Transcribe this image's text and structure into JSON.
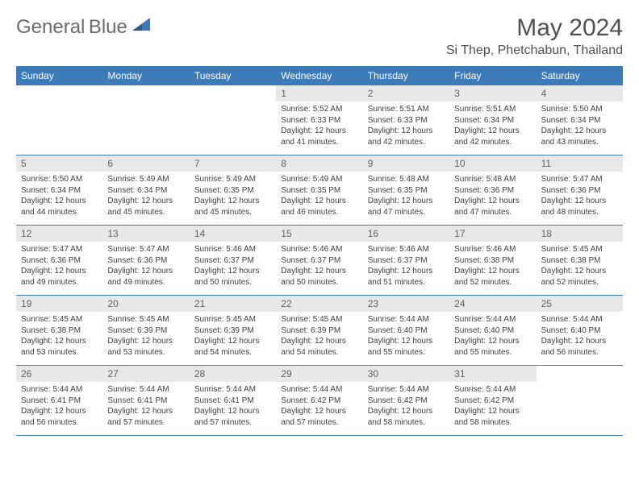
{
  "logo": {
    "text1": "General",
    "text2": "Blue",
    "icon_color": "#3d7ab8"
  },
  "title": "May 2024",
  "location": "Si Thep, Phetchabun, Thailand",
  "header_bg": "#3d7ab8",
  "header_text_color": "#ffffff",
  "daynum_bg": "#e8e8e8",
  "border_color": "#3d7ab8",
  "weekdays": [
    "Sunday",
    "Monday",
    "Tuesday",
    "Wednesday",
    "Thursday",
    "Friday",
    "Saturday"
  ],
  "weeks": [
    [
      null,
      null,
      null,
      {
        "n": "1",
        "sr": "5:52 AM",
        "ss": "6:33 PM",
        "dl": "12 hours and 41 minutes."
      },
      {
        "n": "2",
        "sr": "5:51 AM",
        "ss": "6:33 PM",
        "dl": "12 hours and 42 minutes."
      },
      {
        "n": "3",
        "sr": "5:51 AM",
        "ss": "6:34 PM",
        "dl": "12 hours and 42 minutes."
      },
      {
        "n": "4",
        "sr": "5:50 AM",
        "ss": "6:34 PM",
        "dl": "12 hours and 43 minutes."
      }
    ],
    [
      {
        "n": "5",
        "sr": "5:50 AM",
        "ss": "6:34 PM",
        "dl": "12 hours and 44 minutes."
      },
      {
        "n": "6",
        "sr": "5:49 AM",
        "ss": "6:34 PM",
        "dl": "12 hours and 45 minutes."
      },
      {
        "n": "7",
        "sr": "5:49 AM",
        "ss": "6:35 PM",
        "dl": "12 hours and 45 minutes."
      },
      {
        "n": "8",
        "sr": "5:49 AM",
        "ss": "6:35 PM",
        "dl": "12 hours and 46 minutes."
      },
      {
        "n": "9",
        "sr": "5:48 AM",
        "ss": "6:35 PM",
        "dl": "12 hours and 47 minutes."
      },
      {
        "n": "10",
        "sr": "5:48 AM",
        "ss": "6:36 PM",
        "dl": "12 hours and 47 minutes."
      },
      {
        "n": "11",
        "sr": "5:47 AM",
        "ss": "6:36 PM",
        "dl": "12 hours and 48 minutes."
      }
    ],
    [
      {
        "n": "12",
        "sr": "5:47 AM",
        "ss": "6:36 PM",
        "dl": "12 hours and 49 minutes."
      },
      {
        "n": "13",
        "sr": "5:47 AM",
        "ss": "6:36 PM",
        "dl": "12 hours and 49 minutes."
      },
      {
        "n": "14",
        "sr": "5:46 AM",
        "ss": "6:37 PM",
        "dl": "12 hours and 50 minutes."
      },
      {
        "n": "15",
        "sr": "5:46 AM",
        "ss": "6:37 PM",
        "dl": "12 hours and 50 minutes."
      },
      {
        "n": "16",
        "sr": "5:46 AM",
        "ss": "6:37 PM",
        "dl": "12 hours and 51 minutes."
      },
      {
        "n": "17",
        "sr": "5:46 AM",
        "ss": "6:38 PM",
        "dl": "12 hours and 52 minutes."
      },
      {
        "n": "18",
        "sr": "5:45 AM",
        "ss": "6:38 PM",
        "dl": "12 hours and 52 minutes."
      }
    ],
    [
      {
        "n": "19",
        "sr": "5:45 AM",
        "ss": "6:38 PM",
        "dl": "12 hours and 53 minutes."
      },
      {
        "n": "20",
        "sr": "5:45 AM",
        "ss": "6:39 PM",
        "dl": "12 hours and 53 minutes."
      },
      {
        "n": "21",
        "sr": "5:45 AM",
        "ss": "6:39 PM",
        "dl": "12 hours and 54 minutes."
      },
      {
        "n": "22",
        "sr": "5:45 AM",
        "ss": "6:39 PM",
        "dl": "12 hours and 54 minutes."
      },
      {
        "n": "23",
        "sr": "5:44 AM",
        "ss": "6:40 PM",
        "dl": "12 hours and 55 minutes."
      },
      {
        "n": "24",
        "sr": "5:44 AM",
        "ss": "6:40 PM",
        "dl": "12 hours and 55 minutes."
      },
      {
        "n": "25",
        "sr": "5:44 AM",
        "ss": "6:40 PM",
        "dl": "12 hours and 56 minutes."
      }
    ],
    [
      {
        "n": "26",
        "sr": "5:44 AM",
        "ss": "6:41 PM",
        "dl": "12 hours and 56 minutes."
      },
      {
        "n": "27",
        "sr": "5:44 AM",
        "ss": "6:41 PM",
        "dl": "12 hours and 57 minutes."
      },
      {
        "n": "28",
        "sr": "5:44 AM",
        "ss": "6:41 PM",
        "dl": "12 hours and 57 minutes."
      },
      {
        "n": "29",
        "sr": "5:44 AM",
        "ss": "6:42 PM",
        "dl": "12 hours and 57 minutes."
      },
      {
        "n": "30",
        "sr": "5:44 AM",
        "ss": "6:42 PM",
        "dl": "12 hours and 58 minutes."
      },
      {
        "n": "31",
        "sr": "5:44 AM",
        "ss": "6:42 PM",
        "dl": "12 hours and 58 minutes."
      },
      null
    ]
  ],
  "labels": {
    "sunrise": "Sunrise:",
    "sunset": "Sunset:",
    "daylight": "Daylight:"
  }
}
